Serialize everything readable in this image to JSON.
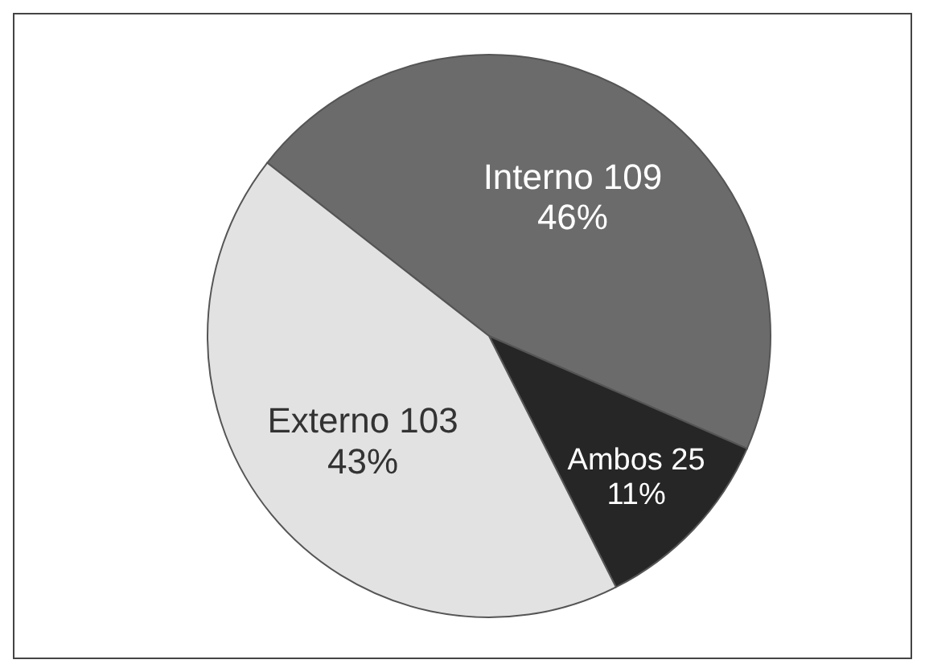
{
  "chart_data": {
    "type": "pie",
    "categories": [
      "Interno 109",
      "Ambos 25",
      "Externo 103"
    ],
    "values": [
      46,
      11,
      43
    ],
    "colors": [
      "#6b6b6b",
      "#262626",
      "#e2e2e2"
    ],
    "value_labels": [
      "46%",
      "11%",
      "43%"
    ]
  }
}
